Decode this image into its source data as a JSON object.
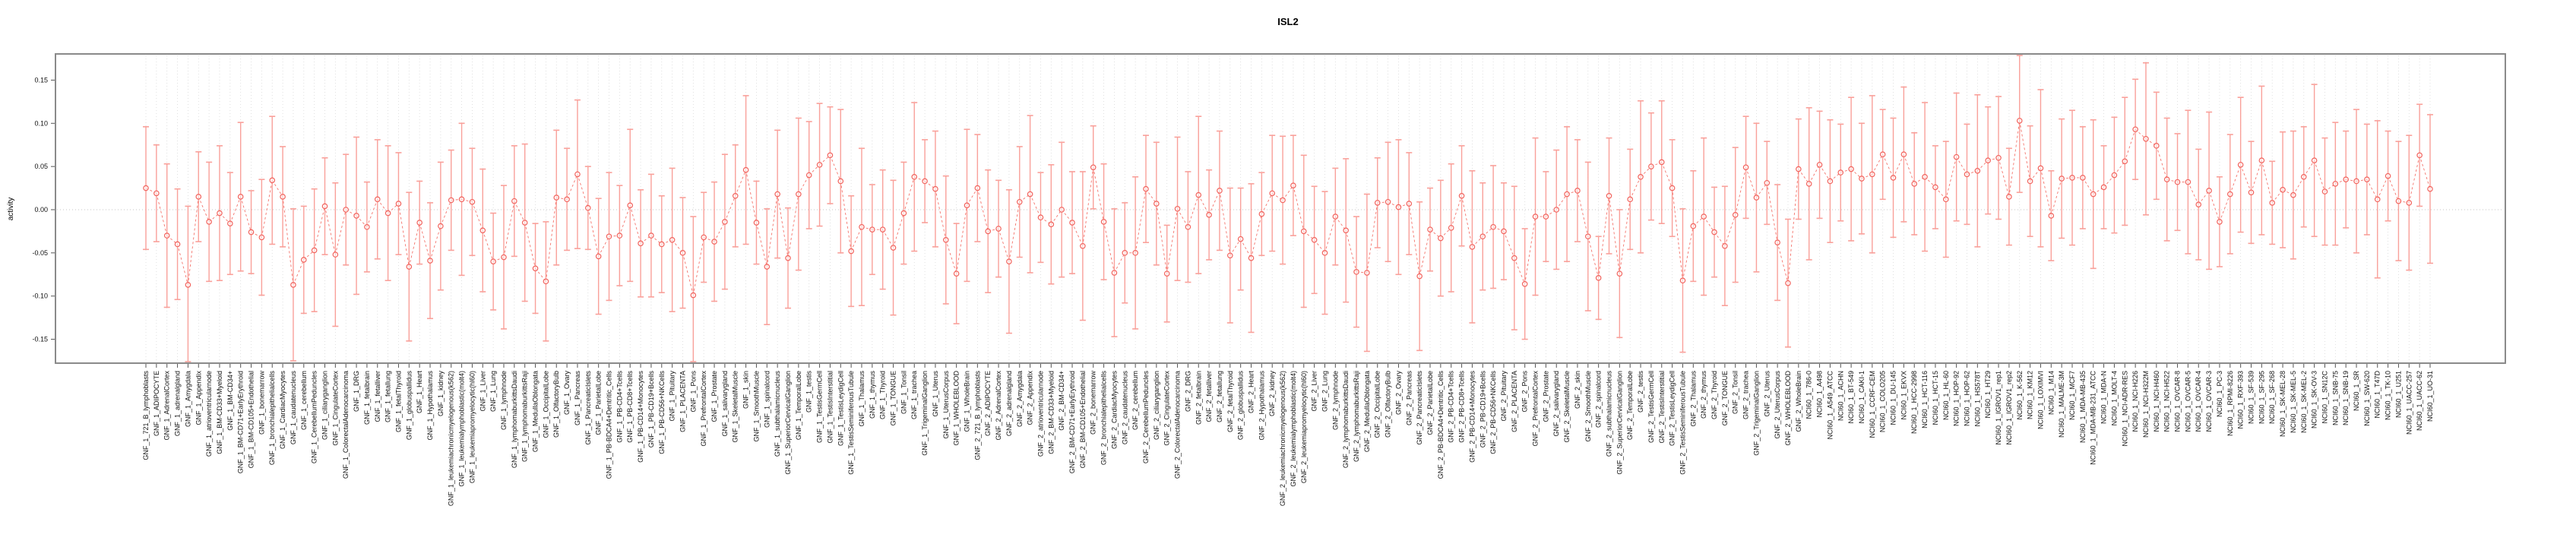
{
  "title": "ISL2",
  "chart_data": {
    "type": "scatter",
    "subtype": "errorbar-dot-plot",
    "title": "ISL2",
    "xlabel": "",
    "ylabel": "activity",
    "ylim": [
      -0.18,
      0.18
    ],
    "yticks": [
      0.15,
      0.1,
      0.05,
      0.0,
      -0.05,
      -0.1,
      -0.15
    ],
    "ytick_labels": [
      "0.15",
      "0.10",
      "0.05",
      "0.00",
      "-0.05",
      "-0.10",
      "-0.15"
    ],
    "legend_position": "none",
    "grid": "dotted vertical line at every category; dotted horizontal line at y=0",
    "marker": "open-circle",
    "line_style": "dashed-connector",
    "colors": {
      "point": "#f2645e",
      "connector": "#f4736b",
      "errorbar": "#f9a09a",
      "frame": "#8a8a8a",
      "gridline": "#d9d9d9",
      "zeroline": "#c4c4c4",
      "text": "#000000"
    },
    "categories": [
      "GNF_1_721_B_lymphoblasts",
      "GNF_1_ADIPOCYTE",
      "GNF_1_AdrenalCortex",
      "GNF_1_adrenalgland",
      "GNF_1_Amygdala",
      "GNF_1_Appendix",
      "GNF_1_atrioventricularnode",
      "GNF_1_BM-CD33+Myeloid",
      "GNF_1_BM-CD34+",
      "GNF_1_BM-CD71+EarlyErythroid",
      "GNF_1_BM-CD105+Endothelial",
      "GNF_1_bonemarrow",
      "GNF_1_bronchialepithelialcells",
      "GNF_1_CardiacMyocytes",
      "GNF_1_caudatenucleus",
      "GNF_1_cerebellum",
      "GNF_1_CerebellumPeduncles",
      "GNF_1_ciliaryganglion",
      "GNF_1_CingulateCortex",
      "GNF_1_ColorectalAdenocarcinoma",
      "GNF_1_DRG",
      "GNF_1_fetalbrain",
      "GNF_1_fetalliver",
      "GNF_1_fetallung",
      "GNF_1_fetalThyroid",
      "GNF_1_globuspallidus",
      "GNF_1_Heart",
      "GNF_1_Hypothalamus",
      "GNF_1_kidney",
      "GNF_1_leukemiachronicmyelogenous(k562)",
      "GNF_1_leukemialymphoblastic(molt4)",
      "GNF_1_leukemiapromyelocytic(hl60)",
      "GNF_1_Liver",
      "GNF_1_Lung",
      "GNF_1_lymphnode",
      "GNF_1_lymphomaburkittsDaudi",
      "GNF_1_lymphomaburkittsRaji",
      "GNF_1_MedullaOblongata",
      "GNF_1_OccipitalLobe",
      "GNF_1_OlfactoryBulb",
      "GNF_1_Ovary",
      "GNF_1_Pancreas",
      "GNF_1_PancreaticIslets",
      "GNF_1_ParietalLobe",
      "GNF_1_PB-BDCA4+Dentritic_Cells",
      "GNF_1_PB-CD4+Tcells",
      "GNF_1_PB-CD8+Tcells",
      "GNF_1_PB-CD14+Monocytes",
      "GNF_1_PB-CD19+Bcells",
      "GNF_1_PB-CD56+NKCells",
      "GNF_1_Pituitary",
      "GNF_1_PLACENTA",
      "GNF_1_Pons",
      "GNF_1_PrefrontalCortex",
      "GNF_1_Prostate",
      "GNF_1_salivarygland",
      "GNF_1_SkeletalMuscle",
      "GNF_1_skin",
      "GNF_1_SmoothMuscle",
      "GNF_1_spinalcord",
      "GNF_1_subthalamicnucleus",
      "GNF_1_SuperiorCervicalGanglion",
      "GNF_1_TemporalLobe",
      "GNF_1_testis",
      "GNF_1_TestisGermCell",
      "GNF_1_TestisInterstitial",
      "GNF_1_TestisLeydigCell",
      "GNF_1_TestisSeminiferousTubule",
      "GNF_1_Thalamus",
      "GNF_1_thymus",
      "GNF_1_Thyroid",
      "GNF_1_TONGUE",
      "GNF_1_Tonsil",
      "GNF_1_trachea",
      "GNF_1_TrigeminalGanglion",
      "GNF_1_Uterus",
      "GNF_1_UterusCorpus",
      "GNF_1_WHOLEBLOOD",
      "GNF_1_WholeBrain",
      "GNF_2_721_B_lymphoblasts",
      "GNF_2_ADIPOCYTE",
      "GNF_2_AdrenalCortex",
      "GNF_2_adrenalgland",
      "GNF_2_Amygdala",
      "GNF_2_Appendix",
      "GNF_2_atrioventricularnode",
      "GNF_2_BM-CD33+Myeloid",
      "GNF_2_BM-CD34+",
      "GNF_2_BM-CD71+EarlyErythroid",
      "GNF_2_BM-CD105+Endothelial",
      "GNF_2_bonemarrow",
      "GNF_2_bronchialepithelialcells",
      "GNF_2_CardiacMyocytes",
      "GNF_2_caudatenucleus",
      "GNF_2_cerebellum",
      "GNF_2_CerebellumPeduncles",
      "GNF_2_ciliaryganglion",
      "GNF_2_CingulateCortex",
      "GNF_2_ColorectalAdenocarcinoma",
      "GNF_2_DRG",
      "GNF_2_fetalbrain",
      "GNF_2_fetalliver",
      "GNF_2_fetallung",
      "GNF_2_fetalThyroid",
      "GNF_2_globuspallidus",
      "GNF_2_Heart",
      "GNF_2_Hypothalamus",
      "GNF_2_kidney",
      "GNF_2_leukemiachronicmyelogenous(k562)",
      "GNF_2_leukemialymphoblastic(molt4)",
      "GNF_2_leukemiapromyelocytic(hl60)",
      "GNF_2_Liver",
      "GNF_2_Lung",
      "GNF_2_lymphnode",
      "GNF_2_lymphomaburkittsDaudi",
      "GNF_2_lymphomaburkittsRaji",
      "GNF_2_MedullaOblongata",
      "GNF_2_OccipitalLobe",
      "GNF_2_OlfactoryBulb",
      "GNF_2_Ovary",
      "GNF_2_Pancreas",
      "GNF_2_PancreaticIslets",
      "GNF_2_ParietalLobe",
      "GNF_2_PB-BDCA4+Dentritic_Cells",
      "GNF_2_PB-CD4+Tcells",
      "GNF_2_PB-CD8+Tcells",
      "GNF_2_PB-CD14+Monocytes",
      "GNF_2_PB-CD19+Bcells",
      "GNF_2_PB-CD56+NKCells",
      "GNF_2_Pituitary",
      "GNF_2_PLACENTA",
      "GNF_2_Pons",
      "GNF_2_PrefrontalCortex",
      "GNF_2_Prostate",
      "GNF_2_salivarygland",
      "GNF_2_SkeletalMuscle",
      "GNF_2_skin",
      "GNF_2_SmoothMuscle",
      "GNF_2_spinalcord",
      "GNF_2_subthalamicnucleus",
      "GNF_2_SuperiorCervicalGanglion",
      "GNF_2_TemporalLobe",
      "GNF_2_testis",
      "GNF_2_TestisGermCell",
      "GNF_2_TestisInterstitial",
      "GNF_2_TestisLeydigCell",
      "GNF_2_TestisSeminiferousTubule",
      "GNF_2_Thalamus",
      "GNF_2_thymus",
      "GNF_2_Thyroid",
      "GNF_2_TONGUE",
      "GNF_2_Tonsil",
      "GNF_2_trachea",
      "GNF_2_TrigeminalGanglion",
      "GNF_2_Uterus",
      "GNF_2_UterusCorpus",
      "GNF_2_WHOLEBLOOD",
      "GNF_2_WholeBrain",
      "NCI60_1_786-0",
      "NCI60_1_A498",
      "NCI60_1_A549_ATCC",
      "NCI60_1_ACHN",
      "NCI60_1_BT-549",
      "NCI60_1_CAKI-1",
      "NCI60_1_CCRF-CEM",
      "NCI60_1_COLO205",
      "NCI60_1_DU-145",
      "NCI60_1_EKVX",
      "NCI60_1_HCC-2998",
      "NCI60_1_HCT-116",
      "NCI60_1_HCT-15",
      "NCI60_1_HL-60",
      "NCI60_1_HOP-92",
      "NCI60_1_HOP-62",
      "NCI60_1_HS578T",
      "NCI60_1_HT29",
      "NCI60_1_IGROV1_rep1",
      "NCI60_1_IGROV1_rep2",
      "NCI60_1_K-562",
      "NCI60_1_KM12",
      "NCI60_1_LOXIMVI",
      "NCI60_1_M14",
      "NCI60_1_MALME-3M",
      "NCI60_1_MCF7",
      "NCI60_1_MDA-MB-435",
      "NCI60_1_MDA-MB-231_ATCC",
      "NCI60_1_MDA-N",
      "NCI60_1_MOLT-4",
      "NCI60_1_NCI-ADR-RES",
      "NCI60_1_NCI-H226",
      "NCI60_1_NCI-H322M",
      "NCI60_1_NCI-H460",
      "NCI60_1_NCI-H522",
      "NCI60_1_OVCAR-8",
      "NCI60_1_OVCAR-5",
      "NCI60_1_OVCAR-4",
      "NCI60_1_OVCAR-3",
      "NCI60_1_PC-3",
      "NCI60_1_RPMI-8226",
      "NCI60_1_RXF-393",
      "NCI60_1_SF-539",
      "NCI60_1_SF-295",
      "NCI60_1_SF-268",
      "NCI60_1_SK-MEL-28",
      "NCI60_1_SK-MEL-5",
      "NCI60_1_SK-MEL-2",
      "NCI60_1_SK-OV-3",
      "NCI60_1_SN12C",
      "NCI60_1_SNB-75",
      "NCI60_1_SNB-19",
      "NCI60_1_SR",
      "NCI60_1_SW-620",
      "NCI60_1_T47D",
      "NCI60_1_TK-10",
      "NCI60_1_U251",
      "NCI60_1_UACC-257",
      "NCI60_1_UACC-62",
      "NCI60_1_UO-31"
    ],
    "values": [
      0.025,
      0.019,
      -0.03,
      -0.04,
      -0.087,
      0.015,
      -0.014,
      -0.004,
      -0.016,
      0.015,
      -0.026,
      -0.032,
      0.034,
      0.015,
      -0.087,
      -0.058,
      -0.047,
      0.004,
      -0.052,
      0.0,
      -0.007,
      -0.02,
      0.012,
      -0.004,
      0.007,
      -0.066,
      -0.015,
      -0.059,
      -0.019,
      0.011,
      0.012,
      0.009,
      -0.024,
      -0.06,
      -0.055,
      0.01,
      -0.015,
      -0.068,
      -0.083,
      0.014,
      0.012,
      0.041,
      0.002,
      -0.054,
      -0.031,
      -0.03,
      0.005,
      -0.039,
      -0.03,
      -0.04,
      -0.035,
      -0.05,
      -0.099,
      -0.032,
      -0.037,
      -0.014,
      0.016,
      0.046,
      -0.015,
      -0.066,
      0.018,
      -0.056,
      0.018,
      0.04,
      0.052,
      0.063,
      0.033,
      -0.048,
      -0.02,
      -0.023,
      -0.023,
      -0.044,
      -0.004,
      0.038,
      0.033,
      0.024,
      -0.035,
      -0.074,
      0.005,
      0.025,
      -0.025,
      -0.022,
      -0.06,
      0.009,
      0.018,
      -0.009,
      -0.017,
      0.0,
      -0.015,
      -0.042,
      0.049,
      -0.014,
      -0.073,
      -0.05,
      -0.05,
      0.024,
      0.007,
      -0.074,
      0.001,
      -0.02,
      0.017,
      -0.006,
      0.022,
      -0.053,
      -0.034,
      -0.056,
      -0.005,
      0.019,
      0.011,
      0.028,
      -0.025,
      -0.035,
      -0.05,
      -0.008,
      -0.024,
      -0.072,
      -0.073,
      0.008,
      0.009,
      0.003,
      0.007,
      -0.077,
      -0.023,
      -0.033,
      -0.021,
      0.016,
      -0.043,
      -0.031,
      -0.02,
      -0.025,
      -0.056,
      -0.086,
      -0.008,
      -0.008,
      0.0,
      0.018,
      0.022,
      -0.031,
      -0.079,
      0.016,
      -0.074,
      0.012,
      0.038,
      0.05,
      0.055,
      0.025,
      -0.082,
      -0.019,
      -0.008,
      -0.026,
      -0.042,
      -0.006,
      0.049,
      0.014,
      0.031,
      -0.038,
      -0.085,
      0.047,
      0.03,
      0.052,
      0.033,
      0.043,
      0.047,
      0.036,
      0.041,
      0.064,
      0.037,
      0.064,
      0.03,
      0.038,
      0.026,
      0.012,
      0.061,
      0.041,
      0.045,
      0.057,
      0.06,
      0.015,
      0.103,
      0.033,
      0.048,
      -0.007,
      0.036,
      0.037,
      0.037,
      0.018,
      0.026,
      0.04,
      0.056,
      0.093,
      0.082,
      0.074,
      0.035,
      0.032,
      0.032,
      0.006,
      0.022,
      -0.014,
      0.018,
      0.052,
      0.02,
      0.057,
      0.008,
      0.023,
      0.017,
      0.038,
      0.057,
      0.021,
      0.03,
      0.035,
      0.033,
      0.035,
      0.012,
      0.039,
      0.01,
      0.008,
      0.063,
      0.024
    ],
    "errors": [
      0.071,
      0.056,
      0.083,
      0.064,
      0.091,
      0.052,
      0.069,
      0.078,
      0.059,
      0.086,
      0.048,
      0.067,
      0.074,
      0.058,
      0.088,
      0.062,
      0.071,
      0.056,
      0.083,
      0.064,
      0.091,
      0.052,
      0.069,
      0.078,
      0.059,
      0.086,
      0.048,
      0.067,
      0.074,
      0.058,
      0.088,
      0.062,
      0.071,
      0.056,
      0.083,
      0.064,
      0.091,
      0.052,
      0.069,
      0.078,
      0.059,
      0.086,
      0.048,
      0.067,
      0.074,
      0.058,
      0.088,
      0.062,
      0.071,
      0.056,
      0.083,
      0.064,
      0.091,
      0.052,
      0.069,
      0.078,
      0.059,
      0.086,
      0.048,
      0.067,
      0.074,
      0.058,
      0.088,
      0.062,
      0.071,
      0.056,
      0.083,
      0.064,
      0.091,
      0.052,
      0.069,
      0.078,
      0.059,
      0.086,
      0.048,
      0.067,
      0.074,
      0.058,
      0.088,
      0.062,
      0.071,
      0.056,
      0.083,
      0.064,
      0.091,
      0.052,
      0.069,
      0.078,
      0.059,
      0.086,
      0.048,
      0.067,
      0.074,
      0.058,
      0.088,
      0.062,
      0.071,
      0.056,
      0.083,
      0.064,
      0.091,
      0.052,
      0.069,
      0.078,
      0.059,
      0.086,
      0.048,
      0.067,
      0.074,
      0.058,
      0.088,
      0.062,
      0.071,
      0.056,
      0.083,
      0.064,
      0.091,
      0.052,
      0.069,
      0.078,
      0.059,
      0.086,
      0.048,
      0.067,
      0.074,
      0.058,
      0.088,
      0.062,
      0.071,
      0.056,
      0.083,
      0.064,
      0.091,
      0.052,
      0.069,
      0.078,
      0.059,
      0.086,
      0.048,
      0.067,
      0.074,
      0.058,
      0.088,
      0.062,
      0.071,
      0.056,
      0.083,
      0.064,
      0.091,
      0.052,
      0.069,
      0.078,
      0.059,
      0.086,
      0.048,
      0.067,
      0.074,
      0.058,
      0.088,
      0.062,
      0.071,
      0.056,
      0.083,
      0.064,
      0.091,
      0.052,
      0.069,
      0.078,
      0.059,
      0.086,
      0.048,
      0.067,
      0.074,
      0.058,
      0.088,
      0.062,
      0.071,
      0.056,
      0.083,
      0.064,
      0.091,
      0.052,
      0.069,
      0.078,
      0.059,
      0.086,
      0.048,
      0.067,
      0.074,
      0.058,
      0.088,
      0.062,
      0.071,
      0.056,
      0.083,
      0.064,
      0.091,
      0.052,
      0.069,
      0.078,
      0.059,
      0.086,
      0.048,
      0.067,
      0.074,
      0.058,
      0.088,
      0.062,
      0.071,
      0.056,
      0.083,
      0.064,
      0.091,
      0.052,
      0.069,
      0.078,
      0.059,
      0.086
    ]
  }
}
